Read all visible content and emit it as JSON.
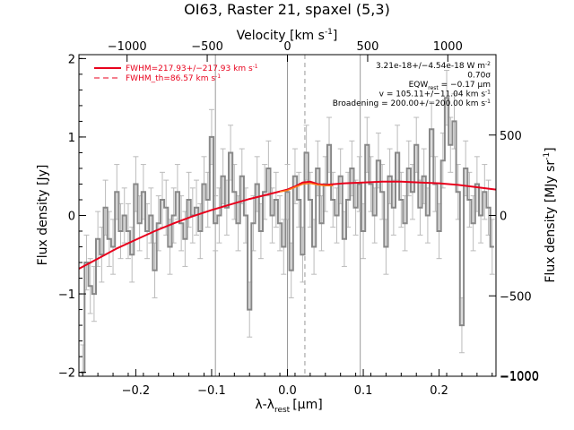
{
  "chart_data": {
    "type": "line",
    "title": "OI63, Raster 21, spaxel (5,3)",
    "xlabel": "λ-λ",
    "xlabel_sub": "rest",
    "xlabel_unit": "[μm]",
    "ylabel": "Flux density [Jy]",
    "ylabel_right": "Flux density [MJy sr",
    "ylabel_right_sup": "-1",
    "ylabel_right_end": "]",
    "xlabel_top": "Velocity [km s",
    "xlabel_top_sup": "-1",
    "xlabel_top_end": "]",
    "xlim": [
      -0.275,
      0.275
    ],
    "ylim": [
      -2.05,
      2.05
    ],
    "yright_lim": [
      -1000,
      1000
    ],
    "xticks": [
      -0.2,
      -0.1,
      0.0,
      0.1,
      0.2
    ],
    "xtick_labels": [
      "−0.2",
      "−0.1",
      "0.0",
      "0.1",
      "0.2"
    ],
    "yticks": [
      -2,
      -1,
      0,
      1,
      2
    ],
    "ytick_labels": [
      "−2",
      "−1",
      "0",
      "1",
      "2"
    ],
    "yright_ticks": [
      -1000,
      -500,
      0,
      500
    ],
    "yright_tick_labels": [
      "−1000",
      "−500",
      "0",
      "500"
    ],
    "top_ticks_velocity": [
      -1000,
      -500,
      0,
      500,
      1000
    ],
    "top_tick_labels": [
      "−1000",
      "−500",
      "0",
      "500",
      "1000"
    ],
    "top_tick_positions_x": [
      -0.2115,
      -0.1058,
      0.0,
      0.1058,
      0.2115
    ],
    "vlines": [
      {
        "x": -0.095,
        "style": "solid"
      },
      {
        "x": 0.0,
        "style": "solid"
      },
      {
        "x": 0.023,
        "style": "dashed"
      },
      {
        "x": 0.096,
        "style": "solid"
      }
    ],
    "legend": [
      {
        "label": "FWHM=217.93+/−217.93 km s",
        "sup": "-1",
        "style": "solid",
        "color": "#e8001c"
      },
      {
        "label": "FWHM_th=86.57 km s",
        "sup": "-1",
        "style": "dashed",
        "color": "#e8001c"
      }
    ],
    "annotations": [
      {
        "text": "3.21e-18+/−4.54e-18 W m",
        "sup": "-2"
      },
      {
        "text": "0.70σ"
      },
      {
        "text": "EQW",
        "sub": "rest",
        "text2": " = −0.17 μm"
      },
      {
        "text": "v = 105.11+/−11.04 km s",
        "sup": "-1"
      },
      {
        "text": "Broadening = 200.00+/−200.00 km s",
        "sup": "-1"
      }
    ],
    "series": [
      {
        "role": "data",
        "style": "steps",
        "color": "#888888",
        "x": [
          -0.27,
          -0.265,
          -0.26,
          -0.255,
          -0.25,
          -0.245,
          -0.24,
          -0.235,
          -0.23,
          -0.225,
          -0.22,
          -0.215,
          -0.21,
          -0.205,
          -0.2,
          -0.195,
          -0.19,
          -0.185,
          -0.18,
          -0.175,
          -0.17,
          -0.165,
          -0.16,
          -0.155,
          -0.15,
          -0.145,
          -0.14,
          -0.135,
          -0.13,
          -0.125,
          -0.12,
          -0.115,
          -0.11,
          -0.105,
          -0.1,
          -0.095,
          -0.09,
          -0.085,
          -0.08,
          -0.075,
          -0.07,
          -0.065,
          -0.06,
          -0.055,
          -0.05,
          -0.045,
          -0.04,
          -0.035,
          -0.03,
          -0.025,
          -0.02,
          -0.015,
          -0.01,
          -0.005,
          0.0,
          0.005,
          0.01,
          0.015,
          0.02,
          0.025,
          0.03,
          0.035,
          0.04,
          0.045,
          0.05,
          0.055,
          0.06,
          0.065,
          0.07,
          0.075,
          0.08,
          0.085,
          0.09,
          0.095,
          0.1,
          0.105,
          0.11,
          0.115,
          0.12,
          0.125,
          0.13,
          0.135,
          0.14,
          0.145,
          0.15,
          0.155,
          0.16,
          0.165,
          0.17,
          0.175,
          0.18,
          0.185,
          0.19,
          0.195,
          0.2,
          0.205,
          0.21,
          0.215,
          0.22,
          0.225,
          0.23,
          0.235,
          0.24,
          0.245,
          0.25,
          0.255,
          0.26,
          0.265,
          0.27
        ],
        "y": [
          -2.0,
          -0.6,
          -0.9,
          -1.0,
          -0.3,
          -0.5,
          0.1,
          -0.3,
          -0.4,
          0.3,
          -0.2,
          0.0,
          -0.2,
          -0.5,
          0.4,
          -0.1,
          0.3,
          -0.2,
          0.0,
          -0.7,
          -0.1,
          0.2,
          0.1,
          -0.4,
          0.0,
          0.3,
          -0.1,
          -0.3,
          0.2,
          0.0,
          0.1,
          -0.2,
          0.4,
          0.2,
          1.0,
          -0.1,
          0.0,
          0.5,
          0.1,
          0.8,
          0.3,
          -0.1,
          0.5,
          0.0,
          -1.2,
          -0.1,
          0.4,
          -0.2,
          0.3,
          0.6,
          0.0,
          0.2,
          -0.1,
          -0.4,
          0.3,
          -0.7,
          0.5,
          0.2,
          -0.5,
          0.8,
          0.2,
          -0.4,
          0.6,
          -0.1,
          0.4,
          0.9,
          0.2,
          0.0,
          0.5,
          -0.3,
          0.2,
          0.6,
          0.1,
          0.4,
          -0.2,
          0.9,
          0.4,
          0.0,
          0.7,
          0.3,
          -0.4,
          0.5,
          0.1,
          0.8,
          0.2,
          -0.1,
          0.6,
          0.3,
          0.9,
          0.1,
          0.5,
          0.0,
          1.1,
          0.4,
          -0.2,
          0.7,
          1.5,
          0.9,
          1.2,
          0.3,
          -1.4,
          0.6,
          0.2,
          -0.1,
          0.4,
          0.0,
          0.3,
          0.1,
          -0.4
        ],
        "yerr": 0.35
      },
      {
        "role": "model",
        "style": "line",
        "color": "#e8001c",
        "x": [
          -0.275,
          -0.25,
          -0.225,
          -0.2,
          -0.175,
          -0.15,
          -0.125,
          -0.1,
          -0.075,
          -0.05,
          -0.025,
          0.0,
          0.01,
          0.02,
          0.03,
          0.04,
          0.05,
          0.075,
          0.1,
          0.125,
          0.15,
          0.175,
          0.2,
          0.225,
          0.25,
          0.275
        ],
        "y": [
          -0.68,
          -0.55,
          -0.42,
          -0.31,
          -0.2,
          -0.1,
          -0.01,
          0.07,
          0.14,
          0.21,
          0.27,
          0.33,
          0.37,
          0.42,
          0.43,
          0.4,
          0.39,
          0.41,
          0.42,
          0.43,
          0.43,
          0.42,
          0.41,
          0.39,
          0.36,
          0.33
        ]
      },
      {
        "role": "line-fit",
        "style": "line",
        "color": "#ff7a1a",
        "x": [
          -0.01,
          0.0,
          0.01,
          0.02,
          0.03,
          0.04,
          0.05,
          0.06
        ],
        "y": [
          0.3,
          0.32,
          0.36,
          0.4,
          0.41,
          0.39,
          0.38,
          0.38
        ]
      }
    ]
  }
}
